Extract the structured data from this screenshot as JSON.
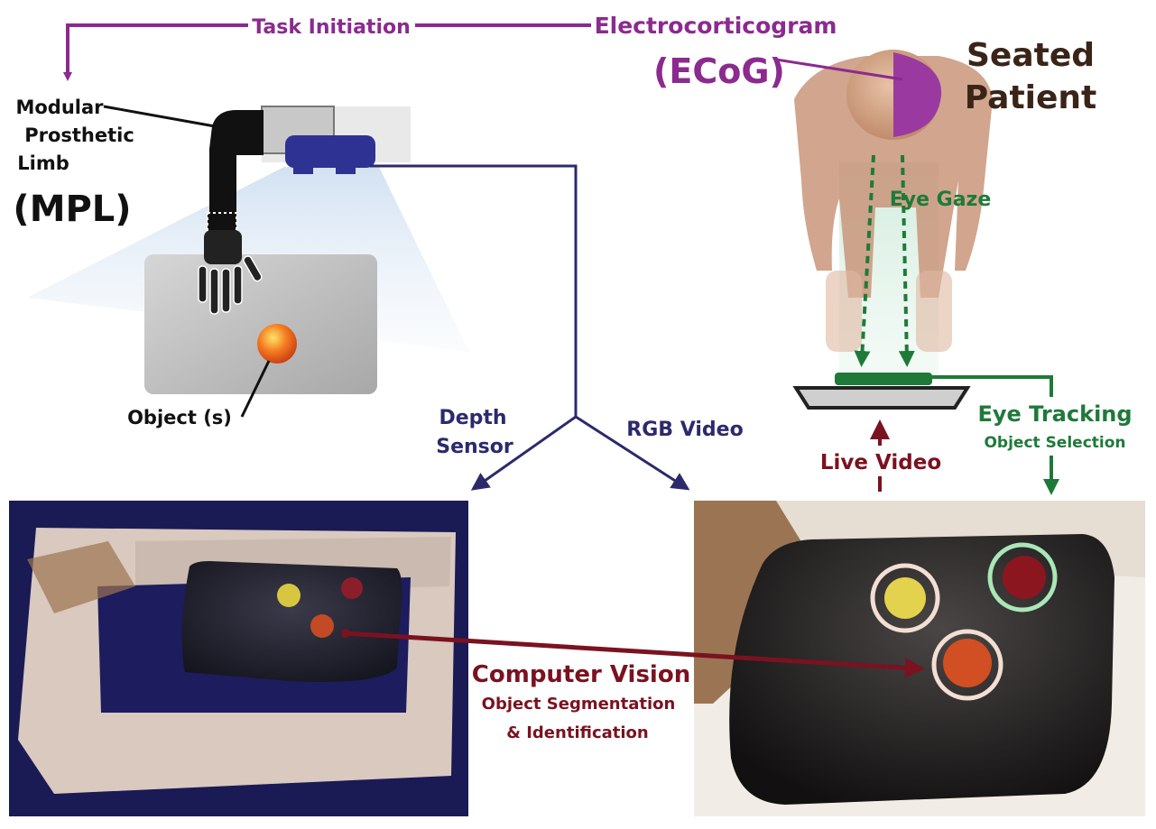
{
  "labels": {
    "task_initiation": "Task Initiation",
    "ecog_name": "Electrocorticogram",
    "ecog_abbr": "(ECoG)",
    "seated": "Seated",
    "patient": "Patient",
    "mpl_line1": "Modular",
    "mpl_line2": "Prosthetic",
    "mpl_line3": "Limb",
    "mpl_abbr": "(MPL)",
    "object": "Object (s)",
    "eye_gaze": "Eye Gaze",
    "depth_line1": "Depth",
    "depth_line2": "Sensor",
    "rgb_video": "RGB Video",
    "live_video": "Live Video",
    "eye_tracking": "Eye Tracking",
    "object_selection": "Object Selection",
    "cv_title": "Computer Vision",
    "cv_line1": "Object Segmentation",
    "cv_line2": "& Identification"
  },
  "colors": {
    "purple": "#8b2a8f",
    "navy": "#2c2a6b",
    "green": "#1f7a3a",
    "maroon": "#7a1220",
    "dark_text": "#3a2418",
    "black": "#111111"
  }
}
